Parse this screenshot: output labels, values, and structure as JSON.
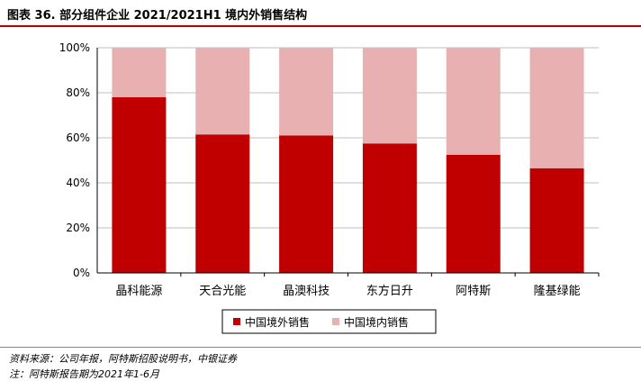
{
  "header": {
    "title": "图表 36. 部分组件企业 2021/2021H1 境内外销售结构"
  },
  "chart_data": {
    "type": "bar",
    "stacked": true,
    "categories": [
      "晶科能源",
      "天合光能",
      "晶澳科技",
      "东方日升",
      "阿特斯",
      "隆基绿能"
    ],
    "series": [
      {
        "name": "中国境外销售",
        "color": "#c00000",
        "values": [
          78,
          61.5,
          61,
          57.5,
          52.5,
          46.5
        ]
      },
      {
        "name": "中国境内销售",
        "color": "#e8b0b0",
        "values": [
          22,
          38.5,
          39,
          42.5,
          47.5,
          53.5
        ]
      }
    ],
    "yticks": [
      "0%",
      "20%",
      "40%",
      "60%",
      "80%",
      "100%"
    ],
    "ylim": [
      0,
      100
    ],
    "grid": true,
    "legend_position": "bottom"
  },
  "footer": {
    "source": "资料来源：公司年报，阿特斯招股说明书，中银证券",
    "note": "注：阿特斯报告期为2021年1-6月"
  }
}
